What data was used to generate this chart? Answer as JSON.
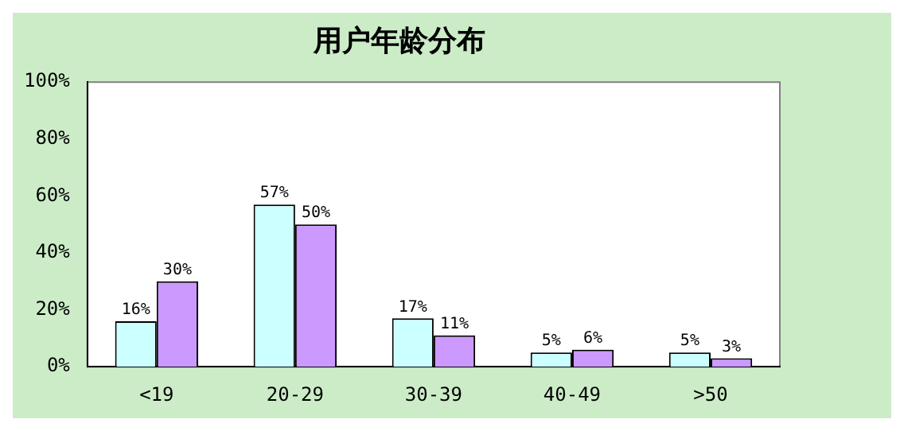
{
  "chart_data": {
    "type": "bar",
    "title": "用户年龄分布",
    "categories": [
      "<19",
      "20-29",
      "30-39",
      "40-49",
      ">50"
    ],
    "series": [
      {
        "color": "#ccffff",
        "values": [
          16,
          57,
          17,
          5,
          5
        ],
        "value_labels": [
          "16%",
          "57%",
          "17%",
          "5%",
          "5%"
        ]
      },
      {
        "color": "#cc99ff",
        "values": [
          30,
          50,
          11,
          6,
          3
        ],
        "value_labels": [
          "30%",
          "50%",
          "11%",
          "6%",
          "3%"
        ]
      }
    ],
    "ylim": [
      0,
      100
    ],
    "yticks": [
      {
        "value": 0,
        "label": "0%"
      },
      {
        "value": 20,
        "label": "20%"
      },
      {
        "value": 40,
        "label": "40%"
      },
      {
        "value": 60,
        "label": "60%"
      },
      {
        "value": 80,
        "label": "80%"
      },
      {
        "value": 100,
        "label": "100%"
      }
    ],
    "grid": false
  }
}
